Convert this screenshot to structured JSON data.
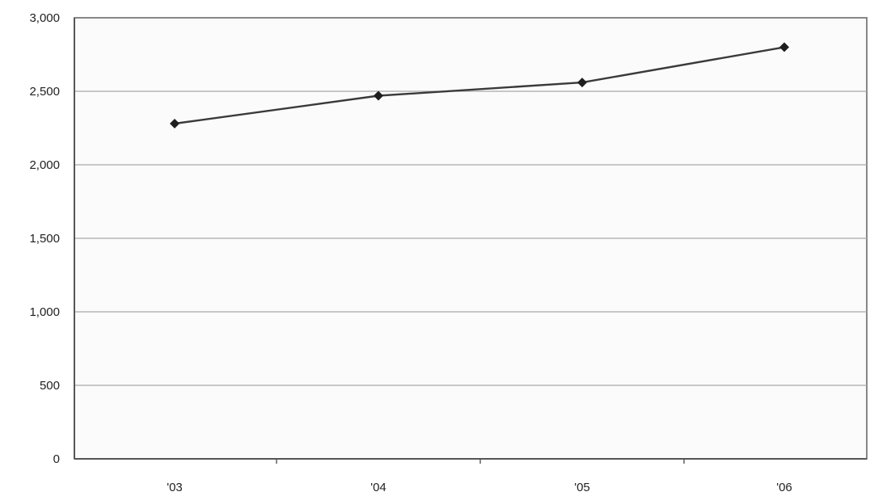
{
  "chart_data": {
    "type": "line",
    "title": "",
    "xlabel": "",
    "ylabel": "",
    "categories": [
      "'03",
      "'04",
      "'05",
      "'06"
    ],
    "series": [
      {
        "values": [
          2280,
          2470,
          2560,
          2800
        ]
      }
    ],
    "ylim": [
      0,
      3000
    ],
    "yticks": [
      0,
      500,
      1000,
      1500,
      2000,
      2500,
      3000
    ],
    "ytick_labels": [
      "0",
      "500",
      "1,000",
      "1,500",
      "2,000",
      "2,500",
      "3,000"
    ],
    "grid": "horizontal",
    "legend": "none",
    "colors": {
      "series": "#3a3a3a",
      "marker": "#1e1e1e",
      "grid": "#a8a8a8",
      "background": "#fbfbfb"
    }
  }
}
